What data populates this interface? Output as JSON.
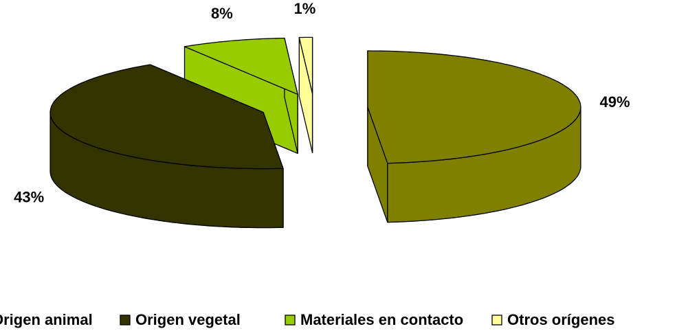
{
  "chart_data": {
    "type": "pie",
    "categories": [
      "Origen animal",
      "Origen vegetal",
      "Materiales en contacto",
      "Otros orígenes"
    ],
    "values": [
      49,
      43,
      8,
      1
    ],
    "value_labels": [
      "49%",
      "43%",
      "8%",
      "1%"
    ],
    "colors": [
      "#808000",
      "#333300",
      "#99cc00",
      "#ffff99"
    ],
    "legend": "bottom"
  }
}
